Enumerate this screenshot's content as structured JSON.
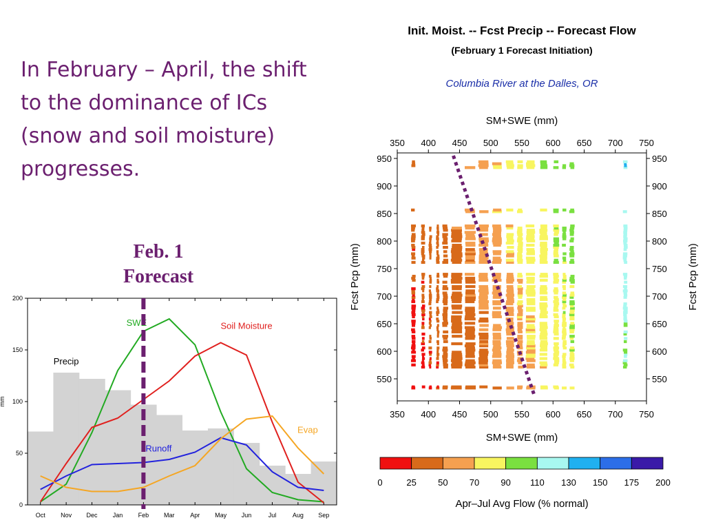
{
  "slide": {
    "headline_lines": [
      "In February – April, the shift",
      "to the dominance of ICs",
      "(snow and soil moisture)",
      "progresses."
    ],
    "forecast_label_lines": [
      "Feb. 1",
      "Forecast"
    ],
    "accent_color": "#6b1f6f"
  },
  "chart_data": [
    {
      "type": "line",
      "title": "",
      "ylabel": "mm",
      "ylim": [
        0,
        200
      ],
      "yticks": [
        0,
        50,
        100,
        150,
        200
      ],
      "categories": [
        "Oct",
        "Nov",
        "Dec",
        "Jan",
        "Feb",
        "Mar",
        "Apr",
        "May",
        "Jun",
        "Jul",
        "Aug",
        "Sep"
      ],
      "bars": {
        "name": "Precip",
        "color": "#d3d3d3",
        "values": [
          71,
          128,
          122,
          111,
          97,
          87,
          72,
          74,
          60,
          38,
          30,
          42
        ]
      },
      "series": [
        {
          "name": "SWE",
          "color": "#22aa22",
          "values": [
            3,
            20,
            70,
            130,
            168,
            180,
            155,
            90,
            35,
            12,
            5,
            3
          ]
        },
        {
          "name": "Soil Moisture",
          "color": "#e0201e",
          "values": [
            3,
            40,
            75,
            84,
            102,
            120,
            144,
            157,
            145,
            80,
            22,
            2
          ]
        },
        {
          "name": "Runoff",
          "color": "#2222dd",
          "values": [
            15,
            28,
            39,
            40,
            41,
            44,
            51,
            65,
            58,
            32,
            17,
            14
          ]
        },
        {
          "name": "Evap",
          "color": "#f5a623",
          "values": [
            28,
            17,
            13,
            13,
            17,
            28,
            38,
            64,
            83,
            86,
            55,
            30
          ]
        }
      ],
      "marker": {
        "at": "Feb",
        "color": "#6b1f6f",
        "style": "dashed"
      }
    },
    {
      "type": "scatter",
      "title": "Init. Moist. -- Fcst Precip -- Forecast Flow",
      "subtitle": "(February 1 Forecast Initiation)",
      "location": "Columbia River at the Dalles, OR",
      "xlabel": "SM+SWE (mm)",
      "ylabel": "Fcst Pcp (mm)",
      "xlim": [
        350,
        750
      ],
      "ylim": [
        510,
        960
      ],
      "xticks": [
        350,
        400,
        450,
        500,
        550,
        600,
        650,
        700,
        750
      ],
      "yticks": [
        550,
        600,
        650,
        700,
        750,
        800,
        850,
        900,
        950
      ],
      "trend_line": {
        "from": [
          440,
          955
        ],
        "to": [
          570,
          520
        ],
        "color": "#6b1f6f",
        "style": "dotted"
      },
      "colorbar": {
        "label": "Apr–Jul Avg Flow (% normal)",
        "bounds": [
          0,
          25,
          50,
          70,
          90,
          110,
          130,
          150,
          175,
          200
        ],
        "colors": [
          "#f01010",
          "#d86a1a",
          "#f5a050",
          "#f8f560",
          "#7ae040",
          "#a8f8f0",
          "#20b0f0",
          "#2c6ee8",
          "#3a1aa8"
        ]
      }
    }
  ]
}
